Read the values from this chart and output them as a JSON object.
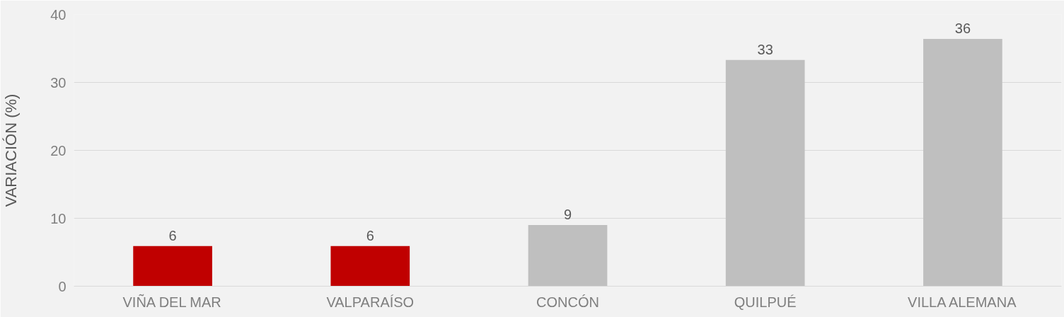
{
  "chart_data": {
    "type": "bar",
    "ylabel": "VARIACIÓN (%)",
    "categories": [
      "VIÑA DEL MAR",
      "VALPARAÍSO",
      "CONCÓN",
      "QUILPUÉ",
      "VILLA ALEMANA"
    ],
    "values": [
      5.9,
      5.9,
      9,
      33.3,
      36.4
    ],
    "value_labels": [
      "6",
      "6",
      "9",
      "33",
      "36"
    ],
    "colors": [
      "#c00000",
      "#c00000",
      "#bfbfbf",
      "#bfbfbf",
      "#bfbfbf"
    ],
    "ylim": [
      0,
      40
    ],
    "yticks": [
      0,
      10,
      20,
      30,
      40
    ],
    "grid": "y"
  }
}
